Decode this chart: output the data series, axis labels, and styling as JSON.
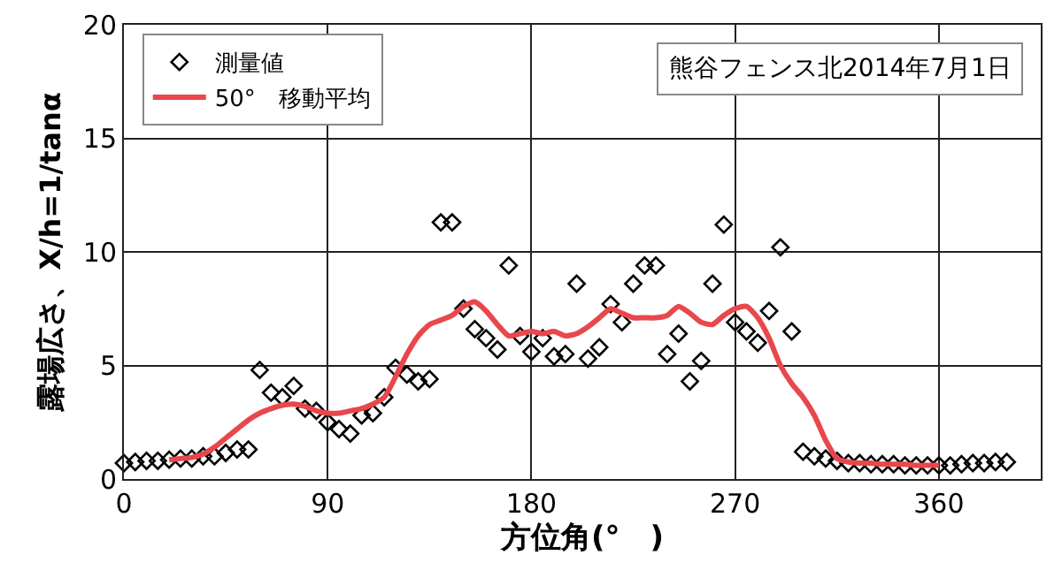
{
  "chart_data": {
    "type": "scatter",
    "xlabel": "方位角(°　)",
    "ylabel": "露場広さ、X/h=1/tanα",
    "annotations": [
      "熊谷フェンス北2014年7月1日"
    ],
    "xlim": [
      0,
      405
    ],
    "xticks": [
      0,
      90,
      180,
      270,
      360
    ],
    "ylim": [
      0,
      20
    ],
    "yticks": [
      0,
      5,
      10,
      15,
      20
    ],
    "grid": true,
    "legend": "top left",
    "series": [
      {
        "name": "測量値",
        "marker": "diamond",
        "color": "#000000",
        "x": [
          0,
          5,
          10,
          15,
          20,
          25,
          30,
          35,
          40,
          45,
          50,
          55,
          60,
          65,
          70,
          75,
          80,
          85,
          90,
          95,
          100,
          105,
          110,
          115,
          120,
          125,
          130,
          135,
          140,
          145,
          150,
          155,
          160,
          165,
          170,
          175,
          180,
          185,
          190,
          195,
          200,
          205,
          210,
          215,
          220,
          225,
          230,
          235,
          240,
          245,
          250,
          255,
          260,
          265,
          270,
          275,
          280,
          285,
          290,
          295,
          300,
          305,
          310,
          315,
          320,
          325,
          330,
          335,
          340,
          345,
          350,
          355,
          360,
          365,
          370,
          375,
          380,
          385,
          390
        ],
        "values": [
          0.7,
          0.75,
          0.8,
          0.8,
          0.85,
          0.9,
          0.9,
          1.0,
          1.0,
          1.15,
          1.3,
          1.3,
          4.8,
          3.8,
          3.6,
          4.1,
          3.1,
          3.0,
          2.5,
          2.2,
          2.0,
          2.8,
          2.9,
          3.6,
          4.9,
          4.6,
          4.3,
          4.4,
          11.3,
          11.3,
          7.5,
          6.6,
          6.2,
          5.7,
          9.4,
          6.3,
          5.6,
          6.2,
          5.4,
          5.5,
          8.6,
          5.3,
          5.8,
          7.7,
          6.9,
          8.6,
          9.4,
          9.4,
          5.5,
          6.4,
          4.3,
          5.2,
          8.6,
          11.2,
          6.9,
          6.5,
          6.0,
          7.4,
          10.2,
          6.5,
          1.2,
          1.0,
          0.9,
          0.8,
          0.7,
          0.7,
          0.65,
          0.65,
          0.65,
          0.6,
          0.6,
          0.6,
          0.6,
          0.6,
          0.65,
          0.7,
          0.7,
          0.75,
          0.75
        ]
      },
      {
        "name": "50°　移動平均",
        "type": "line",
        "marker": "none",
        "line_style": "solid",
        "color": "#e8474c",
        "x": [
          20,
          25,
          30,
          35,
          40,
          45,
          50,
          55,
          60,
          65,
          70,
          75,
          80,
          85,
          90,
          95,
          100,
          105,
          110,
          115,
          120,
          125,
          130,
          135,
          140,
          145,
          150,
          155,
          160,
          165,
          170,
          175,
          180,
          185,
          190,
          195,
          200,
          205,
          210,
          215,
          220,
          225,
          230,
          235,
          240,
          245,
          250,
          255,
          260,
          265,
          270,
          275,
          280,
          285,
          290,
          295,
          300,
          305,
          310,
          315,
          320,
          325,
          330,
          335,
          340,
          345,
          350,
          355,
          360
        ],
        "values": [
          0.85,
          0.9,
          0.95,
          1.1,
          1.4,
          1.8,
          2.2,
          2.6,
          2.9,
          3.1,
          3.25,
          3.3,
          3.2,
          3.0,
          2.9,
          2.9,
          3.0,
          3.1,
          3.3,
          3.6,
          4.5,
          5.5,
          6.3,
          6.8,
          7.0,
          7.2,
          7.6,
          7.8,
          7.4,
          6.8,
          6.3,
          6.4,
          6.5,
          6.4,
          6.5,
          6.3,
          6.4,
          6.7,
          7.1,
          7.5,
          7.3,
          7.1,
          7.1,
          7.1,
          7.2,
          7.6,
          7.3,
          6.9,
          6.8,
          7.2,
          7.5,
          7.6,
          7.1,
          6.2,
          5.0,
          4.2,
          3.6,
          2.8,
          1.7,
          0.9,
          0.75,
          0.7,
          0.7,
          0.65,
          0.65,
          0.65,
          0.6,
          0.6,
          0.6
        ]
      }
    ]
  }
}
